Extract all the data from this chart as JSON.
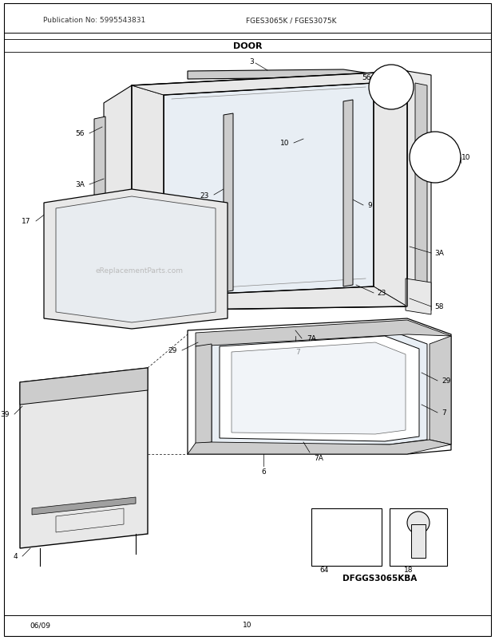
{
  "title": "DOOR",
  "pub_no": "Publication No: 5995543831",
  "model": "FGES3065K / FGES3075K",
  "date": "06/09",
  "page": "10",
  "diagram_label": "DFGGS3065KBA",
  "watermark": "eReplacementParts.com",
  "bg_color": "#ffffff",
  "fig_w": 6.2,
  "fig_h": 8.03,
  "dpi": 100,
  "gray_light": "#e8e8e8",
  "gray_mid": "#cccccc",
  "gray_dark": "#a0a0a0",
  "blue_tint": "#e8eef4",
  "text_color": "#111111",
  "watermark_color": "#bbbbbb"
}
